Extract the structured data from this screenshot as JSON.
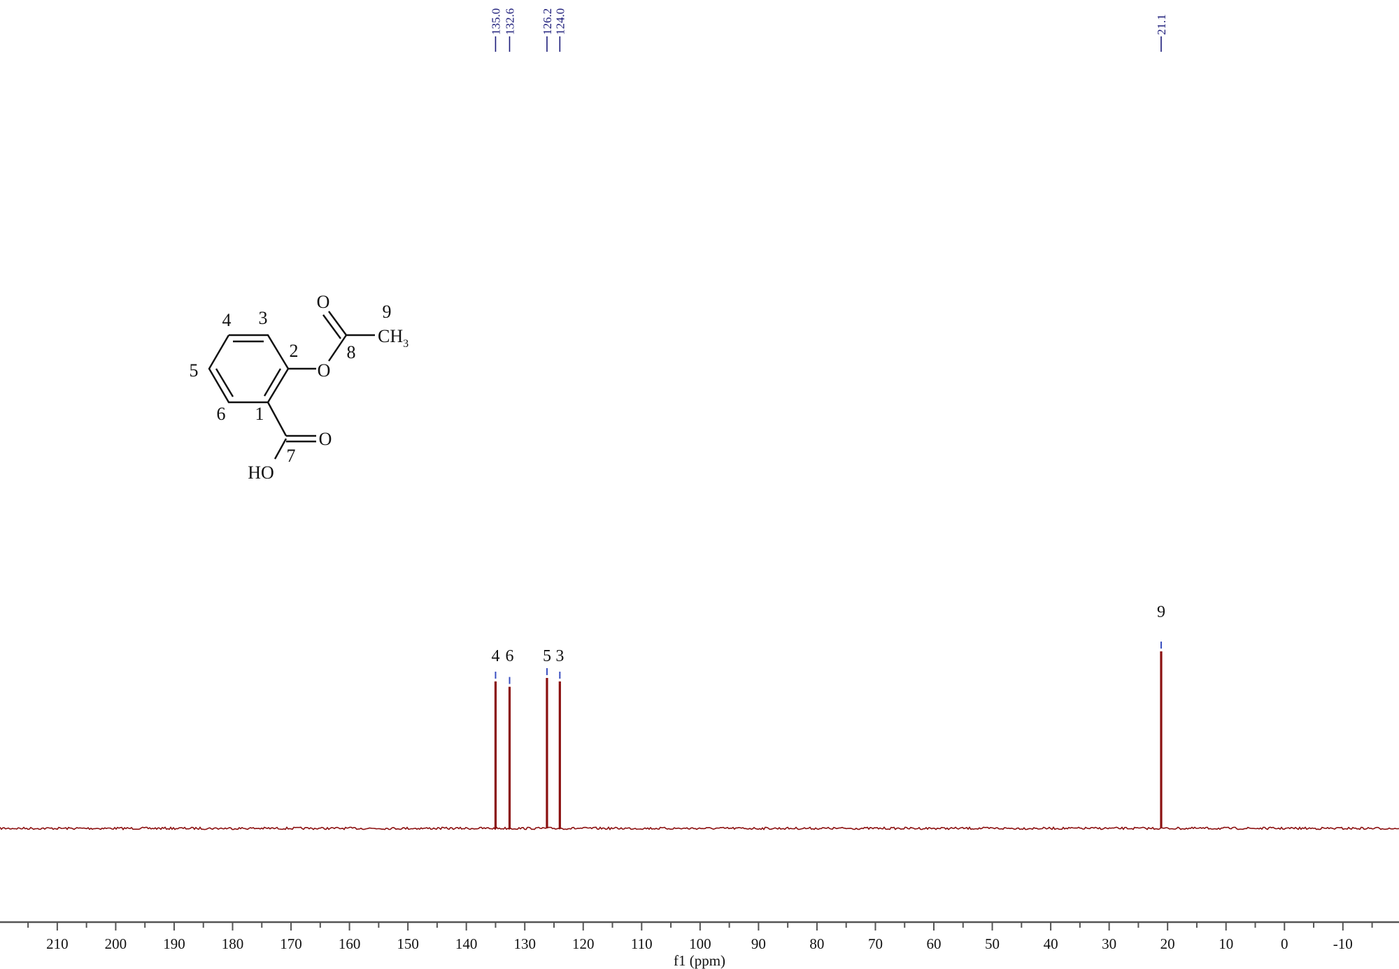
{
  "chart_data": {
    "type": "line",
    "title": "",
    "xlabel": "f1 (ppm)",
    "ylabel": "",
    "xlim": [
      219.8,
      -19.6
    ],
    "x_reversed": true,
    "grid": false,
    "x_ticks": [
      210,
      200,
      190,
      180,
      170,
      160,
      150,
      140,
      130,
      120,
      110,
      100,
      90,
      80,
      70,
      60,
      50,
      40,
      30,
      20,
      10,
      0,
      -10
    ],
    "x_tick_labels": [
      "210",
      "200",
      "190",
      "180",
      "170",
      "160",
      "150",
      "140",
      "130",
      "120",
      "110",
      "100",
      "90",
      "80",
      "70",
      "60",
      "50",
      "40",
      "30",
      "20",
      "10",
      "0",
      "-10"
    ],
    "peaks": [
      {
        "ppm": 135.0,
        "label": "135.0",
        "assignment": "4",
        "relative_intensity": 0.83
      },
      {
        "ppm": 132.6,
        "label": "132.6",
        "assignment": "6",
        "relative_intensity": 0.8
      },
      {
        "ppm": 126.2,
        "label": "126.2",
        "assignment": "5",
        "relative_intensity": 0.85
      },
      {
        "ppm": 124.0,
        "label": "124.0",
        "assignment": "3",
        "relative_intensity": 0.83
      },
      {
        "ppm": 21.1,
        "label": "21.1",
        "assignment": "9",
        "relative_intensity": 1.0
      }
    ],
    "colors": {
      "spectrum": "#8b1010",
      "peak_label": "#1c1c7a",
      "peak_marker": "#3a4fc0",
      "axis": "#555555"
    }
  },
  "structure": {
    "atoms": {
      "o_carbonyl_ester": "O",
      "ch3_c": "CH",
      "ch3_sub": "3",
      "o_ester": "O",
      "o_acid": "O",
      "ho": "HO"
    },
    "numbers": {
      "n1": "1",
      "n2": "2",
      "n3": "3",
      "n4": "4",
      "n5": "5",
      "n6": "6",
      "n7": "7",
      "n8": "8",
      "n9": "9"
    }
  }
}
